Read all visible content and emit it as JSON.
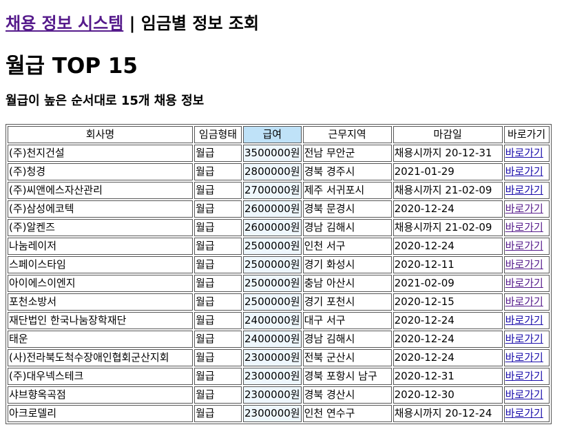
{
  "header": {
    "system_link": "채용 정보 시스템",
    "separator": "|",
    "section": "임금별 정보 조회"
  },
  "page": {
    "title": "월급 TOP 15",
    "subtitle": "월급이 높은 순서대로 15개 채용 정보"
  },
  "table": {
    "headers": [
      "회사명",
      "임금형태",
      "급여",
      "근무지역",
      "마감일",
      "바로가기"
    ],
    "rows": [
      {
        "company": "(주)천지건설",
        "wage_type": "월급",
        "salary": "3500000원",
        "region": "전남 무안군",
        "deadline": "채용시까지 20-12-31",
        "link": "바로가기"
      },
      {
        "company": "(주)청경",
        "wage_type": "월급",
        "salary": "2800000원",
        "region": "경북 경주시",
        "deadline": "2021-01-29",
        "link": "바로가기"
      },
      {
        "company": "(주)씨앤에스자산관리",
        "wage_type": "월급",
        "salary": "2700000원",
        "region": "제주 서귀포시",
        "deadline": "채용시까지 21-02-09",
        "link": "바로가기"
      },
      {
        "company": "(주)삼성에코텍",
        "wage_type": "월급",
        "salary": "2600000원",
        "region": "경북 문경시",
        "deadline": "2020-12-24",
        "link": "바로가기"
      },
      {
        "company": "(주)알켄즈",
        "wage_type": "월급",
        "salary": "2600000원",
        "region": "경남 김해시",
        "deadline": "채용시까지 21-02-09",
        "link": "바로가기"
      },
      {
        "company": "나눔레이저",
        "wage_type": "월급",
        "salary": "2500000원",
        "region": "인천 서구",
        "deadline": "2020-12-24",
        "link": "바로가기"
      },
      {
        "company": "스페이스타임",
        "wage_type": "월급",
        "salary": "2500000원",
        "region": "경기 화성시",
        "deadline": "2020-12-11",
        "link": "바로가기"
      },
      {
        "company": "아이에스이엔지",
        "wage_type": "월급",
        "salary": "2500000원",
        "region": "충남 아산시",
        "deadline": "2021-02-09",
        "link": "바로가기"
      },
      {
        "company": "포천소방서",
        "wage_type": "월급",
        "salary": "2500000원",
        "region": "경기 포천시",
        "deadline": "2020-12-15",
        "link": "바로가기"
      },
      {
        "company": "재단법인 한국나눔장학재단",
        "wage_type": "월급",
        "salary": "2400000원",
        "region": "대구 서구",
        "deadline": "2020-12-24",
        "link": "바로가기"
      },
      {
        "company": "태운",
        "wage_type": "월급",
        "salary": "2400000원",
        "region": "경남 김해시",
        "deadline": "2020-12-24",
        "link": "바로가기"
      },
      {
        "company": "(사)전라북도척수장애인협회군산지회",
        "wage_type": "월급",
        "salary": "2300000원",
        "region": "전북 군산시",
        "deadline": "2020-12-24",
        "link": "바로가기"
      },
      {
        "company": "(주)대우넥스테크",
        "wage_type": "월급",
        "salary": "2300000원",
        "region": "경북 포항시 남구",
        "deadline": "2020-12-31",
        "link": "바로가기"
      },
      {
        "company": "샤브향옥곡점",
        "wage_type": "월급",
        "salary": "2300000원",
        "region": "경북 경산시",
        "deadline": "2020-12-30",
        "link": "바로가기"
      },
      {
        "company": "아크로델리",
        "wage_type": "월급",
        "salary": "2300000원",
        "region": "인천 연수구",
        "deadline": "채용시까지 20-12-24",
        "link": "바로가기"
      }
    ]
  }
}
